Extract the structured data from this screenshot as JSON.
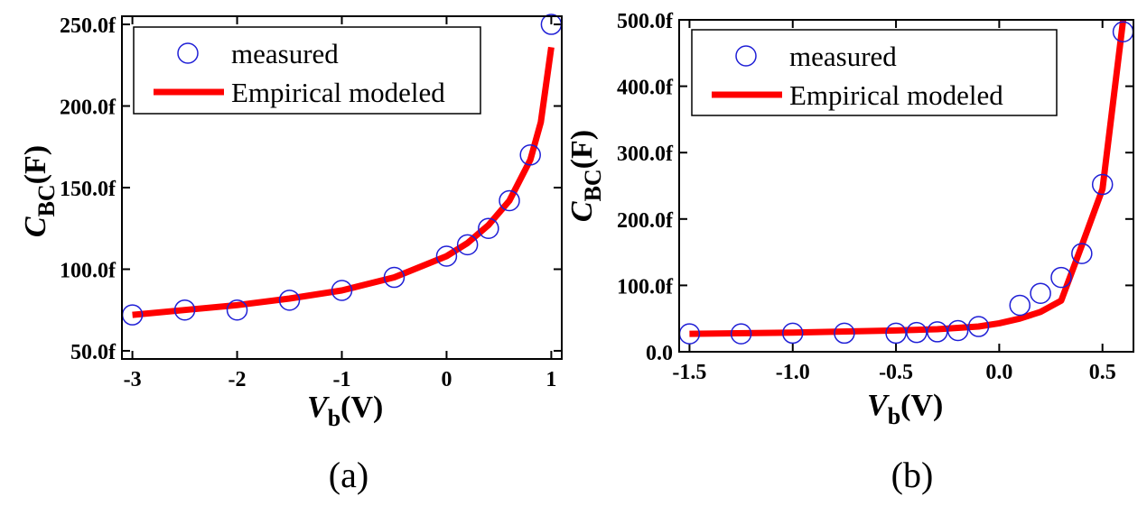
{
  "chart_data": [
    {
      "type": "line",
      "panel_label": "(a)",
      "ylabel": {
        "main": "C",
        "sub": "BC",
        "suffix": "(F)"
      },
      "xlabel": {
        "main": "V",
        "sub": "b",
        "suffix": "(V)"
      },
      "xlim": [
        -3.1,
        1.1
      ],
      "ylim": [
        45,
        255
      ],
      "xticks": [
        -3,
        -2,
        -1,
        0,
        1
      ],
      "xtick_labels": [
        "-3",
        "-2",
        "-1",
        "0",
        "1"
      ],
      "yticks": [
        50,
        100,
        150,
        200,
        250
      ],
      "ytick_labels": [
        "50.0f",
        "100.0f",
        "150.0f",
        "200.0f",
        "250.0f"
      ],
      "legend": {
        "position": "top-left",
        "entries": [
          "measured",
          "Empirical modeled"
        ]
      },
      "series": [
        {
          "name": "measured",
          "style": "open-circle",
          "color": "#1f1fd6",
          "x": [
            -3,
            -2.5,
            -2,
            -1.5,
            -1,
            -0.5,
            0,
            0.2,
            0.4,
            0.6,
            0.8,
            1.0
          ],
          "y": [
            72,
            75,
            75,
            81,
            87,
            95,
            108,
            115,
            125,
            142,
            170,
            250
          ]
        },
        {
          "name": "Empirical modeled",
          "style": "thick-line",
          "color": "#ff0000",
          "x": [
            -3,
            -2.5,
            -2,
            -1.5,
            -1,
            -0.5,
            0,
            0.2,
            0.4,
            0.6,
            0.8,
            0.9,
            1.0
          ],
          "y": [
            72,
            75,
            78,
            82,
            87,
            95,
            108,
            116,
            127,
            142,
            167,
            190,
            236
          ]
        }
      ]
    },
    {
      "type": "line",
      "panel_label": "(b)",
      "ylabel": {
        "main": "C",
        "sub": "BC",
        "suffix": "(F)"
      },
      "xlabel": {
        "main": "V",
        "sub": "b",
        "suffix": "(V)"
      },
      "xlim": [
        -1.55,
        0.65
      ],
      "ylim": [
        0,
        500
      ],
      "xticks": [
        -1.5,
        -1.0,
        -0.5,
        0.0,
        0.5
      ],
      "xtick_labels": [
        "-1.5",
        "-1.0",
        "-0.5",
        "0.0",
        "0.5"
      ],
      "yticks": [
        0,
        100,
        200,
        300,
        400,
        500
      ],
      "ytick_labels": [
        "0.0",
        "100.0f",
        "200.0f",
        "300.0f",
        "400.0f",
        "500.0f"
      ],
      "legend": {
        "position": "top-left",
        "entries": [
          "measured",
          "Empirical modeled"
        ]
      },
      "series": [
        {
          "name": "measured",
          "style": "open-circle",
          "color": "#1f1fd6",
          "x": [
            -1.5,
            -1.25,
            -1.0,
            -0.75,
            -0.5,
            -0.4,
            -0.3,
            -0.2,
            -0.1,
            0.1,
            0.2,
            0.3,
            0.4,
            0.5,
            0.6
          ],
          "y": [
            27,
            27,
            28,
            28,
            28,
            29,
            30,
            32,
            38,
            70,
            88,
            112,
            148,
            252,
            482
          ]
        },
        {
          "name": "Empirical modeled",
          "style": "thick-line",
          "color": "#ff0000",
          "x": [
            -1.5,
            -1.0,
            -0.5,
            -0.3,
            -0.1,
            0.0,
            0.1,
            0.2,
            0.3,
            0.4,
            0.5,
            0.6
          ],
          "y": [
            27,
            29,
            32,
            34,
            38,
            43,
            50,
            60,
            77,
            160,
            245,
            500
          ]
        }
      ]
    }
  ]
}
